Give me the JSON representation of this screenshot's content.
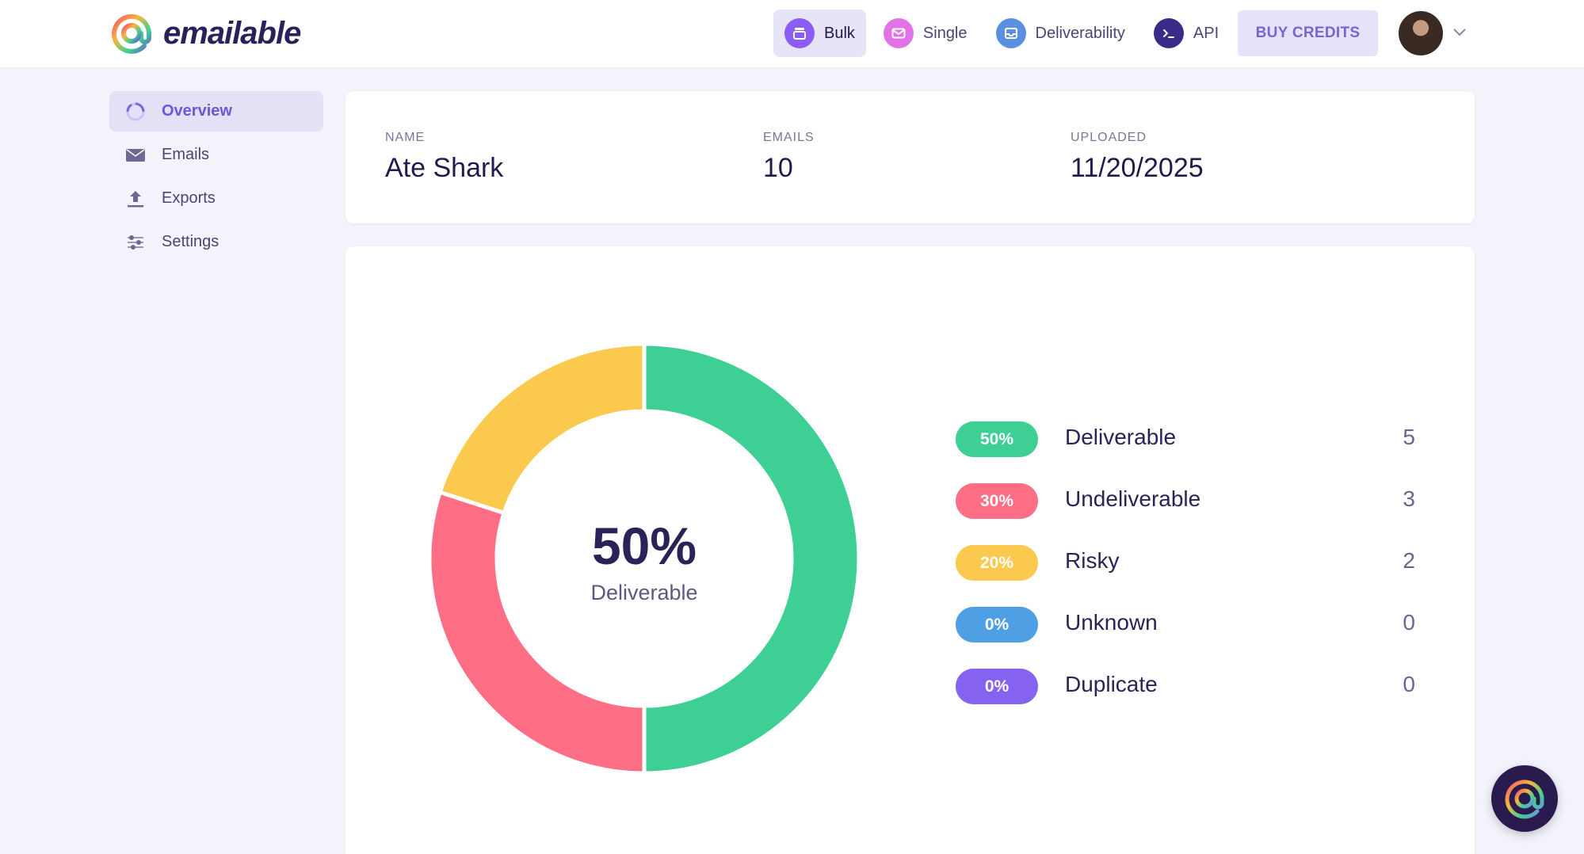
{
  "app": {
    "name": "emailable"
  },
  "nav": {
    "items": [
      {
        "label": "Bulk",
        "icon": "stack-icon",
        "active": true,
        "color": "#8b5cf6"
      },
      {
        "label": "Single",
        "icon": "envelope-icon",
        "active": false,
        "color": "#e173e6"
      },
      {
        "label": "Deliverability",
        "icon": "inbox-icon",
        "active": false,
        "color": "#5b8fe0"
      },
      {
        "label": "API",
        "icon": "terminal-icon",
        "active": false,
        "color": "#3b2a86"
      }
    ],
    "buy_credits": "BUY CREDITS"
  },
  "sidebar": {
    "items": [
      {
        "label": "Overview",
        "icon": "donut-icon",
        "active": true
      },
      {
        "label": "Emails",
        "icon": "envelope-icon",
        "active": false
      },
      {
        "label": "Exports",
        "icon": "upload-icon",
        "active": false
      },
      {
        "label": "Settings",
        "icon": "sliders-icon",
        "active": false
      }
    ]
  },
  "info": {
    "name_label": "NAME",
    "name_value": "Ate Shark",
    "emails_label": "EMAILS",
    "emails_value": "10",
    "uploaded_label": "UPLOADED",
    "uploaded_value": "11/20/2025"
  },
  "summary": {
    "center_percent": "50%",
    "center_label": "Deliverable"
  },
  "chart_data": {
    "type": "pie",
    "categories": [
      "Deliverable",
      "Undeliverable",
      "Risky",
      "Unknown",
      "Duplicate"
    ],
    "values": [
      5,
      3,
      2,
      0,
      0
    ],
    "percent_labels": [
      "50%",
      "30%",
      "20%",
      "0%",
      "0%"
    ],
    "colors": [
      "#3ecf94",
      "#fe6f86",
      "#fbc94e",
      "#4e9fe4",
      "#8563f0"
    ],
    "donut": true
  },
  "colors": {
    "accent": "#7566d4",
    "background": "#f3f3fb"
  }
}
